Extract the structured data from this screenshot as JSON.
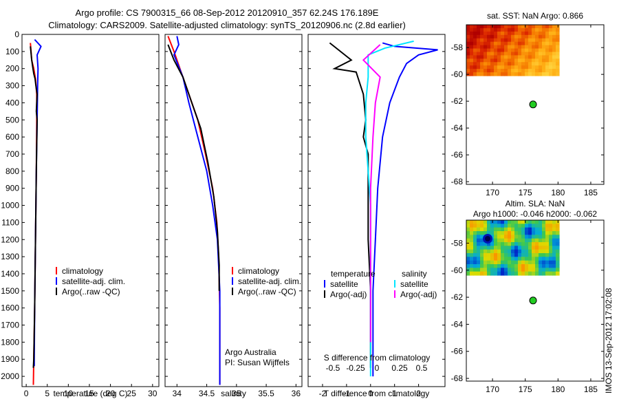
{
  "header": {
    "line1": "Argo profile: CS 7900315_66 08-Sep-2012 20120910_357 62.24S 176.189E",
    "line2": "Climatology: CARS2009. Satellite-adjusted climatology: synTS_20120906.nc (2.8d earlier)"
  },
  "colors": {
    "climatology": "#ff0000",
    "satellite": "#0000ff",
    "argo": "#000000",
    "argo_salinity": "#ff00ff",
    "satellite_salinity": "#00e5ff",
    "float_marker": "#22cc22"
  },
  "side_label": "IMOS 13-Sep-2012 17:02:08",
  "chart_data": [
    {
      "type": "line",
      "id": "temperature",
      "xlabel": "temperature (deg C)",
      "ylabel": "",
      "xlim": [
        -1,
        31.5
      ],
      "ylim": [
        2060,
        0
      ],
      "x_ticks": [
        "0",
        "5",
        "10",
        "15",
        "20",
        "25",
        "30"
      ],
      "y_ticks": [
        "0",
        "100",
        "200",
        "300",
        "400",
        "500",
        "600",
        "700",
        "800",
        "900",
        "1000",
        "1100",
        "1200",
        "1300",
        "1400",
        "1500",
        "1600",
        "1700",
        "1800",
        "1900",
        "2000"
      ],
      "legend": [
        "climatology",
        "satellite-adj. clim.",
        "Argo(..raw -QC)"
      ],
      "series": [
        {
          "name": "climatology",
          "color": "#ff0000",
          "points": [
            [
              1.0,
              50
            ],
            [
              1.3,
              150
            ],
            [
              1.8,
              200
            ],
            [
              2.2,
              260
            ],
            [
              2.5,
              350
            ],
            [
              2.5,
              500
            ],
            [
              2.4,
              800
            ],
            [
              2.2,
              1200
            ],
            [
              2.0,
              1600
            ],
            [
              1.8,
              1900
            ],
            [
              1.7,
              2050
            ]
          ]
        },
        {
          "name": "satellite-adj. clim.",
          "color": "#0000ff",
          "points": [
            [
              2.0,
              30
            ],
            [
              3.5,
              70
            ],
            [
              2.6,
              120
            ],
            [
              2.8,
              200
            ],
            [
              2.7,
              300
            ],
            [
              2.6,
              500
            ],
            [
              2.4,
              800
            ],
            [
              2.2,
              1200
            ],
            [
              2.0,
              1600
            ],
            [
              1.9,
              1900
            ],
            [
              1.9,
              1940
            ]
          ]
        },
        {
          "name": "Argo(..raw -QC)",
          "color": "#000000",
          "points": [
            [
              1.0,
              70
            ],
            [
              1.3,
              150
            ],
            [
              1.6,
              200
            ],
            [
              1.8,
              230
            ],
            [
              2.1,
              260
            ],
            [
              2.3,
              300
            ],
            [
              2.6,
              350
            ],
            [
              2.4,
              450
            ],
            [
              2.6,
              500
            ],
            [
              2.4,
              800
            ],
            [
              2.2,
              1200
            ],
            [
              2.0,
              1600
            ],
            [
              1.8,
              1900
            ],
            [
              1.7,
              1950
            ]
          ]
        }
      ]
    },
    {
      "type": "line",
      "id": "salinity",
      "xlabel": "salinity",
      "ylabel": "",
      "xlim": [
        33.8,
        36.1
      ],
      "ylim": [
        2060,
        0
      ],
      "x_ticks": [
        "34",
        "34.5",
        "35",
        "35.5",
        "36"
      ],
      "legend": [
        "climatology",
        "satellite-adj. clim.",
        "Argo(..raw -QC)"
      ],
      "annotation": [
        "Argo Australia",
        "PI: Susan Wijffels"
      ],
      "series": [
        {
          "name": "climatology",
          "color": "#ff0000",
          "points": [
            [
              33.85,
              10
            ],
            [
              33.95,
              100
            ],
            [
              34.05,
              200
            ],
            [
              34.2,
              350
            ],
            [
              34.35,
              500
            ],
            [
              34.48,
              700
            ],
            [
              34.6,
              900
            ],
            [
              34.67,
              1100
            ],
            [
              34.7,
              1300
            ],
            [
              34.72,
              1600
            ],
            [
              34.72,
              2050
            ]
          ]
        },
        {
          "name": "satellite-adj. clim.",
          "color": "#0000ff",
          "points": [
            [
              34.0,
              10
            ],
            [
              34.03,
              60
            ],
            [
              33.95,
              120
            ],
            [
              34.1,
              250
            ],
            [
              34.2,
              400
            ],
            [
              34.35,
              600
            ],
            [
              34.5,
              800
            ],
            [
              34.6,
              1000
            ],
            [
              34.68,
              1200
            ],
            [
              34.72,
              1500
            ],
            [
              34.72,
              2050
            ]
          ]
        },
        {
          "name": "Argo(..raw -QC)",
          "color": "#000000",
          "points": [
            [
              33.85,
              60
            ],
            [
              33.95,
              150
            ],
            [
              34.1,
              250
            ],
            [
              34.25,
              400
            ],
            [
              34.4,
              550
            ],
            [
              34.52,
              750
            ],
            [
              34.62,
              950
            ],
            [
              34.68,
              1150
            ],
            [
              34.71,
              1350
            ],
            [
              34.71,
              1500
            ]
          ]
        }
      ]
    },
    {
      "type": "line",
      "id": "difference",
      "xlabel": "T difference from climatology",
      "xlabel_top": "S difference from climatology",
      "xlim": [
        -2.6,
        3.1
      ],
      "ylim": [
        2060,
        0
      ],
      "x_ticks": [
        "-2",
        "-1",
        "0",
        "1",
        "2"
      ],
      "x_ticks_salinity": [
        "-0.5",
        "-0.25",
        "0",
        "0.25",
        "0.5"
      ],
      "legend_temperature": [
        "temperature",
        "satellite",
        "Argo(-adj)"
      ],
      "legend_salinity": [
        "salinity",
        "satellite",
        "Argo(-adj)"
      ],
      "series": [
        {
          "name": "temperature satellite",
          "color": "#0000ff",
          "points": [
            [
              0.5,
              50
            ],
            [
              1.0,
              70
            ],
            [
              2.8,
              90
            ],
            [
              2.0,
              120
            ],
            [
              1.5,
              170
            ],
            [
              1.2,
              250
            ],
            [
              0.8,
              400
            ],
            [
              0.5,
              600
            ],
            [
              0.3,
              900
            ],
            [
              0.2,
              1200
            ],
            [
              0.1,
              1500
            ],
            [
              0.1,
              2000
            ]
          ]
        },
        {
          "name": "temperature Argo(-adj)",
          "color": "#000000",
          "points": [
            [
              -1.7,
              50
            ],
            [
              -0.8,
              150
            ],
            [
              -1.5,
              200
            ],
            [
              -0.6,
              220
            ],
            [
              -0.3,
              350
            ],
            [
              -0.2,
              500
            ],
            [
              -0.3,
              600
            ],
            [
              -0.1,
              700
            ],
            [
              -0.1,
              900
            ],
            [
              -0.1,
              1200
            ],
            [
              0,
              1500
            ],
            [
              0,
              1950
            ]
          ]
        },
        {
          "name": "salinity satellite",
          "color": "#00e5ff",
          "points": [
            [
              1.8,
              40
            ],
            [
              0.6,
              80
            ],
            [
              -0.1,
              120
            ],
            [
              -0.1,
              250
            ],
            [
              -0.2,
              400
            ],
            [
              -0.2,
              600
            ],
            [
              -0.1,
              800
            ],
            [
              0,
              1000
            ],
            [
              0,
              1200
            ],
            [
              0,
              1500
            ],
            [
              0,
              2000
            ]
          ]
        },
        {
          "name": "salinity Argo(-adj)",
          "color": "#ff00ff",
          "points": [
            [
              0.4,
              60
            ],
            [
              -0.3,
              150
            ],
            [
              0.4,
              250
            ],
            [
              0.2,
              400
            ],
            [
              0.1,
              600
            ],
            [
              0,
              900
            ],
            [
              0,
              1200
            ],
            [
              0,
              1500
            ],
            [
              0,
              1800
            ]
          ]
        }
      ]
    },
    {
      "type": "heatmap",
      "id": "sst_map",
      "title": "sat. SST: NaN Argo: 0.866",
      "xlim": [
        166,
        187
      ],
      "ylim": [
        -68.2,
        -56.3
      ],
      "x_ticks": [
        "170",
        "175",
        "180",
        "185"
      ],
      "y_ticks": [
        "-58",
        "-60",
        "-62",
        "-64",
        "-66",
        "-68"
      ],
      "float_position": [
        176.189,
        -62.24
      ]
    },
    {
      "type": "heatmap",
      "id": "sla_map",
      "title_lines": [
        "Altim. SLA: NaN",
        "Argo h1000: -0.046 h2000: -0.062"
      ],
      "xlim": [
        166,
        187
      ],
      "ylim": [
        -68.2,
        -56.3
      ],
      "x_ticks": [
        "170",
        "175",
        "180",
        "185"
      ],
      "y_ticks": [
        "-58",
        "-60",
        "-62",
        "-64",
        "-66",
        "-68"
      ],
      "float_position": [
        176.189,
        -62.24
      ]
    }
  ]
}
